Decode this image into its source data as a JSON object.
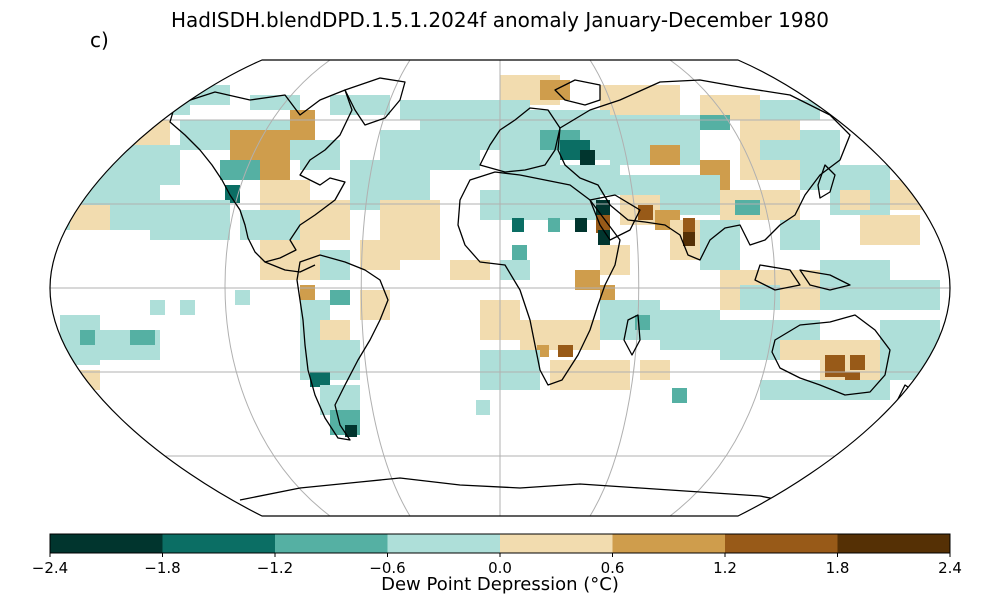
{
  "title": "HadISDH.blendDPD.1.5.1.2024f anomaly January-December 1980",
  "panel_label": "c)",
  "colorbar": {
    "label": "Dew Point Depression",
    "unit": "(°C)",
    "ticks": [
      "−2.4",
      "−1.8",
      "−1.2",
      "−0.6",
      "0.0",
      "0.6",
      "1.2",
      "1.8",
      "2.4"
    ],
    "colors": [
      "#01352e",
      "#0b6e64",
      "#55b0a3",
      "#aedfd9",
      "#f2dcaf",
      "#cf9d4c",
      "#985a18",
      "#553005"
    ]
  },
  "chart_data": {
    "type": "heatmap",
    "projection": "robinson",
    "variable": "Dew Point Depression anomaly",
    "period": "January-December 1980",
    "value_range": [
      -2.4,
      2.4
    ],
    "land_outline_color": "#000000",
    "graticule_color": "#b0b0b0"
  }
}
